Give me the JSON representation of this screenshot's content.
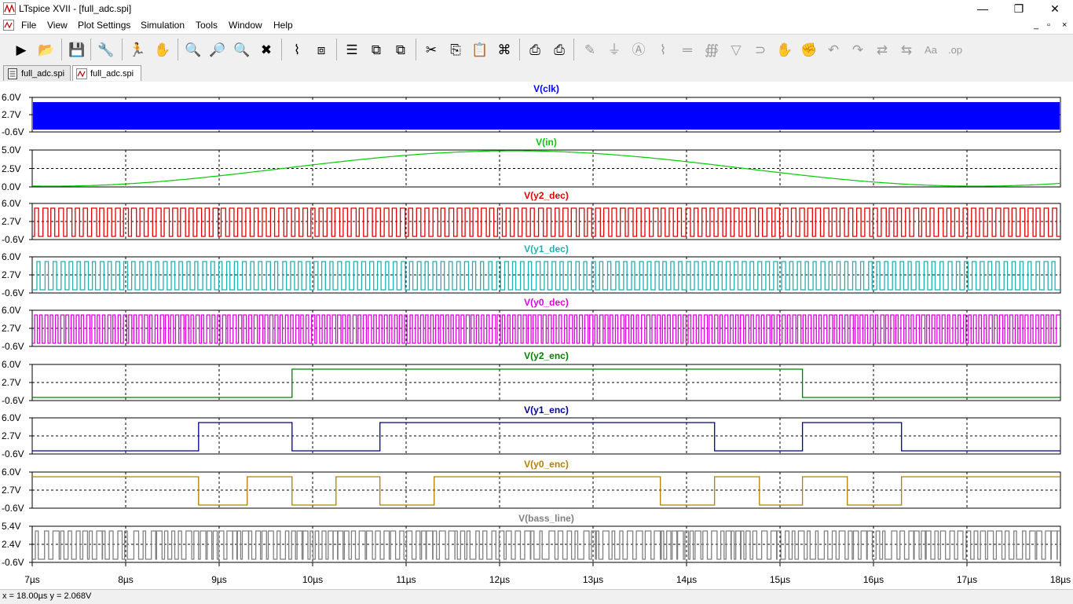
{
  "window": {
    "title": "LTspice XVII - [full_adc.spi]",
    "minimize_glyph": "—",
    "restore_glyph": "❐",
    "close_glyph": "✕",
    "mdi_minimize": "_",
    "mdi_restore": "▫",
    "mdi_close": "×"
  },
  "menu": [
    "File",
    "View",
    "Plot Settings",
    "Simulation",
    "Tools",
    "Window",
    "Help"
  ],
  "toolbar": {
    "icons": [
      {
        "name": "run-icon",
        "glyph": "▶"
      },
      {
        "name": "open-icon",
        "glyph": "📂"
      },
      {
        "name": "save-icon",
        "glyph": "💾"
      },
      {
        "name": "control-panel-icon",
        "glyph": "🔧"
      },
      {
        "name": "probe-run-icon",
        "glyph": "🏃"
      },
      {
        "name": "pan-hand-icon",
        "glyph": "✋"
      },
      {
        "name": "zoom-in-icon",
        "glyph": "🔍"
      },
      {
        "name": "zoom-area-icon",
        "glyph": "🔎"
      },
      {
        "name": "zoom-out-icon",
        "glyph": "🔍"
      },
      {
        "name": "zoom-cancel-icon",
        "glyph": "✖"
      },
      {
        "name": "autorange-icon",
        "glyph": "⌇"
      },
      {
        "name": "fit-plot-icon",
        "glyph": "⧈"
      },
      {
        "name": "tile-horizontal-icon",
        "glyph": "☰"
      },
      {
        "name": "cascade-icon",
        "glyph": "⧉"
      },
      {
        "name": "tile-vertical-icon",
        "glyph": "⧉"
      },
      {
        "name": "cut-icon",
        "glyph": "✂"
      },
      {
        "name": "copy-icon",
        "glyph": "⎘"
      },
      {
        "name": "paste-icon",
        "glyph": "📋"
      },
      {
        "name": "find-icon",
        "glyph": "⌘"
      },
      {
        "name": "print-icon",
        "glyph": "⎙"
      },
      {
        "name": "print-setup-icon",
        "glyph": "⎙"
      },
      {
        "name": "wire-icon",
        "glyph": "✎"
      },
      {
        "name": "ground-icon",
        "glyph": "⏚"
      },
      {
        "name": "label-icon",
        "glyph": "Ⓐ"
      },
      {
        "name": "resistor-icon",
        "glyph": "⌇"
      },
      {
        "name": "capacitor-icon",
        "glyph": "═"
      },
      {
        "name": "inductor-icon",
        "glyph": "∰"
      },
      {
        "name": "diode-icon",
        "glyph": "▽"
      },
      {
        "name": "component-icon",
        "glyph": "⊃"
      },
      {
        "name": "move-hand-icon",
        "glyph": "✋"
      },
      {
        "name": "drag-hand-icon",
        "glyph": "✊"
      },
      {
        "name": "undo-icon",
        "glyph": "↶"
      },
      {
        "name": "redo-icon",
        "glyph": "↷"
      },
      {
        "name": "rotate-icon",
        "glyph": "⇄"
      },
      {
        "name": "mirror-icon",
        "glyph": "⇆"
      },
      {
        "name": "text-icon",
        "glyph": "Aa"
      },
      {
        "name": "spice-directive-icon",
        "glyph": ".op"
      }
    ]
  },
  "tabs": [
    {
      "label": "full_adc.spi",
      "kind": "netlist"
    },
    {
      "label": "full_adc.spi",
      "kind": "waveform"
    }
  ],
  "plot": {
    "x_ticks": [
      "7µs",
      "8µs",
      "9µs",
      "10µs",
      "11µs",
      "12µs",
      "13µs",
      "14µs",
      "15µs",
      "16µs",
      "17µs",
      "18µs"
    ],
    "panes": [
      {
        "title": "V(clk)",
        "color": "#0000ff",
        "y_ticks": [
          "6.0V",
          "2.7V",
          "-0.6V"
        ]
      },
      {
        "title": "V(in)",
        "color": "#00cc00",
        "y_ticks": [
          "5.0V",
          "2.5V",
          "0.0V"
        ]
      },
      {
        "title": "V(y2_dec)",
        "color": "#e00000",
        "y_ticks": [
          "6.0V",
          "2.7V",
          "-0.6V"
        ]
      },
      {
        "title": "V(y1_dec)",
        "color": "#20b0b0",
        "y_ticks": [
          "6.0V",
          "2.7V",
          "-0.6V"
        ]
      },
      {
        "title": "V(y0_dec)",
        "color": "#e000e0",
        "y_ticks": [
          "6.0V",
          "2.7V",
          "-0.6V"
        ]
      },
      {
        "title": "V(y2_enc)",
        "color": "#008000",
        "y_ticks": [
          "6.0V",
          "2.7V",
          "-0.6V"
        ]
      },
      {
        "title": "V(y1_enc)",
        "color": "#000090",
        "y_ticks": [
          "6.0V",
          "2.7V",
          "-0.6V"
        ]
      },
      {
        "title": "V(y0_enc)",
        "color": "#b08000",
        "y_ticks": [
          "6.0V",
          "2.7V",
          "-0.6V"
        ]
      },
      {
        "title": "V(bass_line)",
        "color": "#808080",
        "y_ticks": [
          "5.4V",
          "2.4V",
          "-0.6V"
        ]
      }
    ]
  },
  "status": {
    "text": "x = 18.00µs    y = 2.068V"
  }
}
